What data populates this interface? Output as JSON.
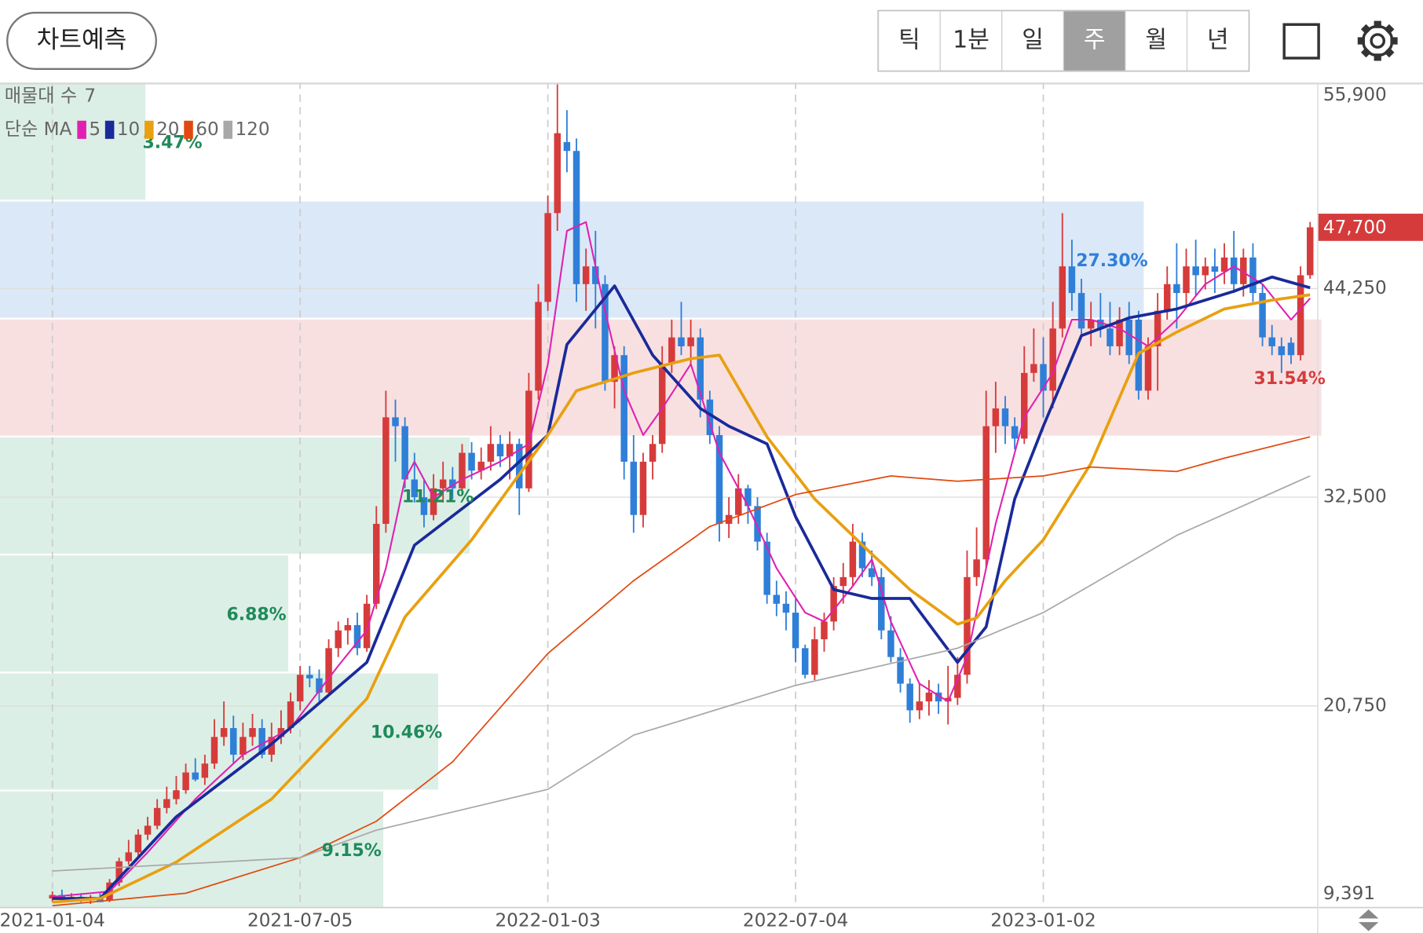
{
  "toolbar": {
    "predict": "차트예측",
    "periods": [
      "틱",
      "1분",
      "일",
      "주",
      "월",
      "년"
    ],
    "selected": 3
  },
  "chart_data": {
    "type": "candlestick",
    "up_color": "#d63b3b",
    "down_color": "#2f7fd8",
    "xlim": [
      -5.5,
      132.8
    ],
    "xticks": [
      {
        "value": 0,
        "label": "2021-01-04"
      },
      {
        "value": 26,
        "label": "2021-07-05"
      },
      {
        "value": 52,
        "label": "2022-01-03"
      },
      {
        "value": 78,
        "label": "2022-07-04"
      },
      {
        "value": 104,
        "label": "2023-01-02"
      }
    ],
    "ylim": [
      9391,
      55900
    ],
    "yticks": [
      {
        "value": 55900,
        "label": "55,900"
      },
      {
        "value": 44250,
        "label": "44,250"
      },
      {
        "value": 32500,
        "label": "32,500"
      },
      {
        "value": 20750,
        "label": "20,750"
      },
      {
        "value": 9391,
        "label": "9,391"
      }
    ],
    "grid": true,
    "last_price": {
      "value": 47700,
      "label": "47,700",
      "color": "#d63b3b"
    },
    "ohlc": [
      [
        9900,
        10300,
        9700,
        10100
      ],
      [
        10100,
        10400,
        9800,
        9900
      ],
      [
        9900,
        10200,
        9700,
        10000
      ],
      [
        10000,
        10200,
        9700,
        9800
      ],
      [
        9800,
        10100,
        9600,
        9900
      ],
      [
        9900,
        10200,
        9700,
        9700
      ],
      [
        9800,
        11000,
        9700,
        10800
      ],
      [
        10800,
        12200,
        10600,
        12000
      ],
      [
        12000,
        13200,
        11800,
        12500
      ],
      [
        12500,
        13800,
        12300,
        13500
      ],
      [
        13500,
        14500,
        13200,
        14000
      ],
      [
        14000,
        15500,
        13800,
        15000
      ],
      [
        15000,
        16200,
        14700,
        15500
      ],
      [
        15500,
        16800,
        15200,
        16000
      ],
      [
        16000,
        17500,
        15800,
        17000
      ],
      [
        17000,
        17800,
        16500,
        16600
      ],
      [
        16700,
        18000,
        16300,
        17500
      ],
      [
        17500,
        20000,
        17200,
        19000
      ],
      [
        19000,
        21000,
        18500,
        19500
      ],
      [
        19500,
        20200,
        17500,
        18000
      ],
      [
        18000,
        19800,
        17700,
        19000
      ],
      [
        19000,
        20300,
        18500,
        19500
      ],
      [
        19500,
        20000,
        17800,
        18000
      ],
      [
        18000,
        19800,
        17600,
        19000
      ],
      [
        19000,
        20500,
        18600,
        19500
      ],
      [
        19500,
        21500,
        19200,
        21000
      ],
      [
        21000,
        23000,
        20500,
        22500
      ],
      [
        22500,
        23000,
        21800,
        22300
      ],
      [
        22300,
        22800,
        21000,
        21500
      ],
      [
        21500,
        24500,
        21300,
        24000
      ],
      [
        24000,
        25500,
        23500,
        25000
      ],
      [
        25000,
        25700,
        24200,
        25300
      ],
      [
        25300,
        26000,
        23600,
        24000
      ],
      [
        24000,
        27000,
        23800,
        26500
      ],
      [
        26500,
        32000,
        26200,
        31000
      ],
      [
        31000,
        38500,
        30500,
        37000
      ],
      [
        37000,
        38000,
        34500,
        36500
      ],
      [
        36500,
        37000,
        33000,
        33500
      ],
      [
        33500,
        35000,
        32200,
        32500
      ],
      [
        32500,
        33500,
        30800,
        31500
      ],
      [
        31500,
        33800,
        31200,
        33000
      ],
      [
        33000,
        34500,
        32200,
        33500
      ],
      [
        33500,
        34200,
        32400,
        33000
      ],
      [
        33000,
        35500,
        32700,
        35000
      ],
      [
        35000,
        35600,
        33500,
        34000
      ],
      [
        34000,
        35300,
        33500,
        34500
      ],
      [
        34500,
        36500,
        34000,
        35500
      ],
      [
        35500,
        36000,
        34200,
        34800
      ],
      [
        34800,
        36200,
        33500,
        35500
      ],
      [
        35500,
        35800,
        31500,
        33000
      ],
      [
        33000,
        39500,
        32800,
        38500
      ],
      [
        38500,
        44500,
        38000,
        43500
      ],
      [
        43500,
        49500,
        43000,
        48500
      ],
      [
        48500,
        55900,
        47500,
        53000
      ],
      [
        52500,
        54300,
        50800,
        52000
      ],
      [
        52000,
        52700,
        43500,
        44500
      ],
      [
        44500,
        46500,
        43000,
        45500
      ],
      [
        45500,
        47500,
        42000,
        44500
      ],
      [
        44500,
        45000,
        38500,
        39000
      ],
      [
        39000,
        41000,
        37500,
        40500
      ],
      [
        40500,
        41000,
        33500,
        34500
      ],
      [
        34500,
        36000,
        30500,
        31500
      ],
      [
        31500,
        35000,
        30800,
        34500
      ],
      [
        34500,
        36000,
        33500,
        35500
      ],
      [
        35500,
        41000,
        35000,
        40000
      ],
      [
        40000,
        42500,
        39500,
        41500
      ],
      [
        41500,
        43500,
        40500,
        41000
      ],
      [
        41000,
        42500,
        40000,
        41500
      ],
      [
        41500,
        42000,
        37000,
        38000
      ],
      [
        38000,
        38500,
        35500,
        36000
      ],
      [
        36000,
        36500,
        30000,
        31000
      ],
      [
        31000,
        32500,
        30200,
        31500
      ],
      [
        31500,
        33800,
        31000,
        33000
      ],
      [
        33000,
        33200,
        31000,
        32000
      ],
      [
        32000,
        32500,
        29500,
        30000
      ],
      [
        30000,
        30500,
        26500,
        27000
      ],
      [
        27000,
        27800,
        25800,
        26500
      ],
      [
        26500,
        27200,
        25000,
        26000
      ],
      [
        26000,
        26800,
        23200,
        24000
      ],
      [
        24000,
        24200,
        22300,
        22500
      ],
      [
        22500,
        25200,
        22200,
        24500
      ],
      [
        24500,
        26000,
        23800,
        25500
      ],
      [
        25500,
        28000,
        25000,
        27500
      ],
      [
        27500,
        28800,
        26500,
        28000
      ],
      [
        28000,
        31000,
        27500,
        30000
      ],
      [
        30000,
        30500,
        28000,
        28500
      ],
      [
        28500,
        29500,
        27500,
        28000
      ],
      [
        28000,
        28500,
        24500,
        25000
      ],
      [
        25000,
        25800,
        23200,
        23500
      ],
      [
        23500,
        24000,
        21500,
        22000
      ],
      [
        22000,
        22300,
        19800,
        20500
      ],
      [
        20500,
        22000,
        20000,
        21000
      ],
      [
        21000,
        22200,
        20200,
        21500
      ],
      [
        21500,
        22000,
        20300,
        21000
      ],
      [
        21000,
        23000,
        19700,
        21200
      ],
      [
        21200,
        23500,
        20800,
        22500
      ],
      [
        22500,
        29500,
        22000,
        28000
      ],
      [
        28000,
        30800,
        27500,
        29000
      ],
      [
        29000,
        38500,
        28500,
        36500
      ],
      [
        36500,
        39000,
        35000,
        37500
      ],
      [
        37500,
        38200,
        35500,
        36500
      ],
      [
        36500,
        37000,
        35200,
        35800
      ],
      [
        35800,
        41000,
        35500,
        39500
      ],
      [
        39500,
        42000,
        39000,
        40000
      ],
      [
        40000,
        41500,
        37000,
        38500
      ],
      [
        38500,
        43500,
        37500,
        42000
      ],
      [
        42000,
        48500,
        41500,
        45500
      ],
      [
        45500,
        47000,
        43000,
        44000
      ],
      [
        44000,
        44800,
        41500,
        42000
      ],
      [
        42000,
        43500,
        41000,
        42500
      ],
      [
        42500,
        44000,
        41500,
        42000
      ],
      [
        42000,
        43500,
        40500,
        41000
      ],
      [
        41000,
        43200,
        40500,
        42500
      ],
      [
        42500,
        43500,
        40000,
        40500
      ],
      [
        42500,
        43000,
        38000,
        38500
      ],
      [
        38500,
        41500,
        38000,
        41000
      ],
      [
        41000,
        44000,
        38500,
        43000
      ],
      [
        43000,
        45500,
        42500,
        44500
      ],
      [
        44500,
        46800,
        42000,
        44000
      ],
      [
        44000,
        46500,
        43200,
        45500
      ],
      [
        45500,
        47000,
        43800,
        45000
      ],
      [
        45000,
        46000,
        44200,
        45500
      ],
      [
        45500,
        46500,
        44000,
        45200
      ],
      [
        45200,
        46800,
        44500,
        46000
      ],
      [
        46000,
        47500,
        44000,
        44500
      ],
      [
        44500,
        46500,
        43800,
        46000
      ],
      [
        46000,
        46800,
        43500,
        44000
      ],
      [
        44000,
        44500,
        41000,
        41500
      ],
      [
        41500,
        42200,
        40500,
        41000
      ],
      [
        41000,
        41500,
        39500,
        40500
      ],
      [
        41200,
        41500,
        40000,
        40500
      ],
      [
        40500,
        45500,
        40200,
        45000
      ],
      [
        45000,
        48000,
        44800,
        47700
      ]
    ],
    "ma_label": "단순 MA",
    "series": [
      {
        "name": "5",
        "color": "#e020b0",
        "x": [
          0,
          6,
          10,
          15,
          20,
          25,
          30,
          33,
          35,
          37,
          38,
          40,
          43,
          47,
          50,
          52,
          54,
          56,
          58,
          60,
          62,
          64,
          67,
          70,
          73,
          76,
          79,
          81,
          84,
          86,
          88,
          91,
          94,
          96,
          99,
          102,
          105,
          107,
          109,
          112,
          115,
          118,
          121,
          124,
          127,
          130,
          132
        ],
        "values": [
          10000,
          10300,
          12500,
          15500,
          18000,
          19500,
          23000,
          25000,
          28500,
          33500,
          34500,
          32500,
          33500,
          34500,
          35500,
          40000,
          47500,
          48000,
          43000,
          38500,
          36000,
          37500,
          40000,
          35000,
          32000,
          28500,
          26000,
          25500,
          27500,
          29000,
          25500,
          22000,
          21000,
          23500,
          31000,
          37000,
          39500,
          42500,
          42500,
          42000,
          41000,
          42500,
          44500,
          45500,
          44500,
          42500,
          43700
        ]
      },
      {
        "name": "10",
        "color": "#1a2a9a",
        "x": [
          0,
          5,
          13,
          23,
          33,
          38,
          47,
          52,
          54,
          59,
          63,
          68,
          71,
          75,
          78,
          82,
          86,
          90,
          95,
          98,
          101,
          104,
          108,
          113,
          118,
          124,
          128,
          132
        ],
        "values": [
          9900,
          9900,
          14500,
          18600,
          23200,
          29800,
          33500,
          36000,
          41100,
          44400,
          40500,
          37500,
          36500,
          35500,
          31400,
          27300,
          26800,
          26800,
          23200,
          25200,
          32400,
          36500,
          41600,
          42600,
          43100,
          44100,
          44900,
          44300
        ]
      },
      {
        "name": "20",
        "color": "#e8a010",
        "x": [
          0,
          5,
          13,
          23,
          33,
          37,
          44,
          52,
          55,
          61,
          67,
          70,
          75,
          80,
          86,
          90,
          95,
          97,
          100,
          104,
          109,
          114,
          118,
          123,
          128,
          132
        ],
        "values": [
          9700,
          9900,
          11950,
          15500,
          21150,
          25750,
          30100,
          36000,
          38500,
          39500,
          40300,
          40500,
          35900,
          32400,
          29300,
          27300,
          25350,
          25700,
          27800,
          30100,
          34400,
          40600,
          41800,
          43100,
          43600,
          43900
        ]
      },
      {
        "name": "60",
        "color": "#e04a10",
        "x": [
          0,
          14,
          26,
          34,
          42,
          52,
          61,
          69,
          78,
          88,
          95,
          104,
          109,
          118,
          123,
          132
        ],
        "values": [
          9500,
          10200,
          12200,
          14250,
          17600,
          23700,
          27800,
          30850,
          32650,
          33700,
          33400,
          33700,
          34200,
          33950,
          34700,
          35900
        ]
      },
      {
        "name": "120",
        "color": "#a8a8a8",
        "x": [
          0,
          26,
          34,
          52,
          61,
          78,
          95,
          104,
          118,
          132
        ],
        "values": [
          11450,
          12200,
          13750,
          16050,
          19100,
          21900,
          24000,
          26000,
          30350,
          33700
        ]
      }
    ],
    "volume_profile": {
      "title": "매물대 수",
      "count": 7,
      "values": [
        3.47,
        27.3,
        31.54,
        11.21,
        6.88,
        10.46,
        9.15
      ],
      "value_labels": [
        "3.47%",
        "27.30%",
        "31.54%",
        "11.21%",
        "6.88%",
        "10.46%",
        "9.15%"
      ],
      "colors": [
        "#dcefe6",
        "#dbe8f7",
        "#f8e0e1",
        "#dcefe6",
        "#dcefe6",
        "#dcefe6",
        "#dcefe6"
      ],
      "label_colors": [
        "#1f8a5a",
        "#2f7fd8",
        "#d63b3b",
        "#1f8a5a",
        "#1f8a5a",
        "#1f8a5a",
        "#1f8a5a"
      ]
    }
  }
}
